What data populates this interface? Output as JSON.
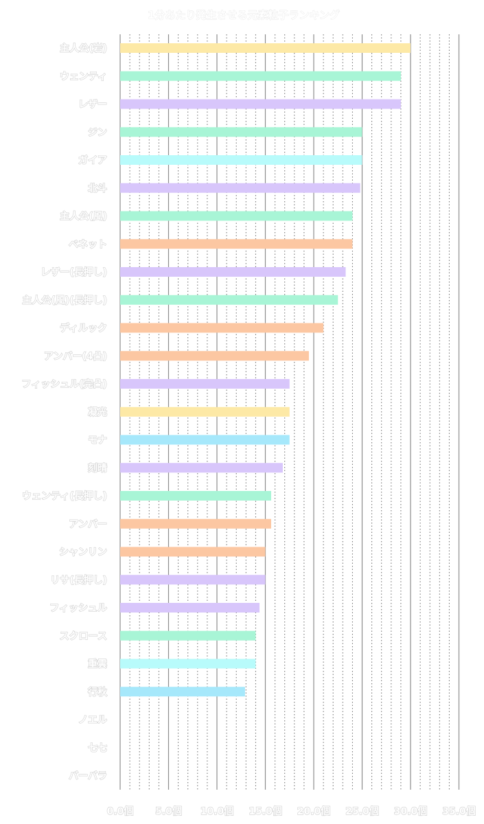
{
  "chart_data": {
    "type": "bar",
    "orientation": "horizontal",
    "title": "1分あたり発生させる元素粒子ランキング",
    "xlabel": "",
    "ylabel": "",
    "xlim": [
      0,
      35
    ],
    "tick_values": [
      0,
      5,
      10,
      15,
      20,
      25,
      30,
      35
    ],
    "tick_labels": [
      "0.0個",
      "5.0個",
      "10.0個",
      "15.0個",
      "20.0個",
      "25.0個",
      "30.0個",
      "35.0個"
    ],
    "minor_grid_step": 1,
    "grid": true,
    "categories": [
      "主人公(岩)",
      "ウェンティ",
      "レザー",
      "ジン",
      "ガイア",
      "北斗",
      "主人公(風)",
      "ベネット",
      "レザー(長押し)",
      "主人公(風)(長押し)",
      "ディルック",
      "アンバー(4凸)",
      "フィッシュル(完凸)",
      "凝光",
      "モナ",
      "刻晴",
      "ウェンティ(長押し)",
      "アンバー",
      "シャンリン",
      "リサ(長押し)",
      "フィッシュル",
      "スクロース",
      "重雲",
      "行秋",
      "ノエル",
      "七七",
      "バーバラ"
    ],
    "values": [
      30.0,
      29.0,
      29.0,
      25.0,
      25.0,
      24.8,
      24.0,
      24.0,
      23.3,
      22.5,
      21.0,
      19.5,
      17.5,
      17.5,
      17.5,
      16.8,
      15.6,
      15.6,
      15.0,
      15.0,
      14.4,
      14.0,
      14.0,
      12.9,
      0,
      0,
      0
    ],
    "bar_colors": [
      "#fde9a6",
      "#a8f5d6",
      "#d8c6fb",
      "#a8f5d6",
      "#b8fbfb",
      "#d8c6fb",
      "#a8f5d6",
      "#fcc7a2",
      "#d8c6fb",
      "#a8f5d6",
      "#fcc7a2",
      "#fcc7a2",
      "#d8c6fb",
      "#fde9a6",
      "#a6e8fb",
      "#d8c6fb",
      "#a8f5d6",
      "#fcc7a2",
      "#fcc7a2",
      "#d8c6fb",
      "#d8c6fb",
      "#a8f5d6",
      "#b8fbfb",
      "#a6e8fb",
      "#d8c6fb",
      "#d8c6fb",
      "#d8c6fb"
    ]
  }
}
